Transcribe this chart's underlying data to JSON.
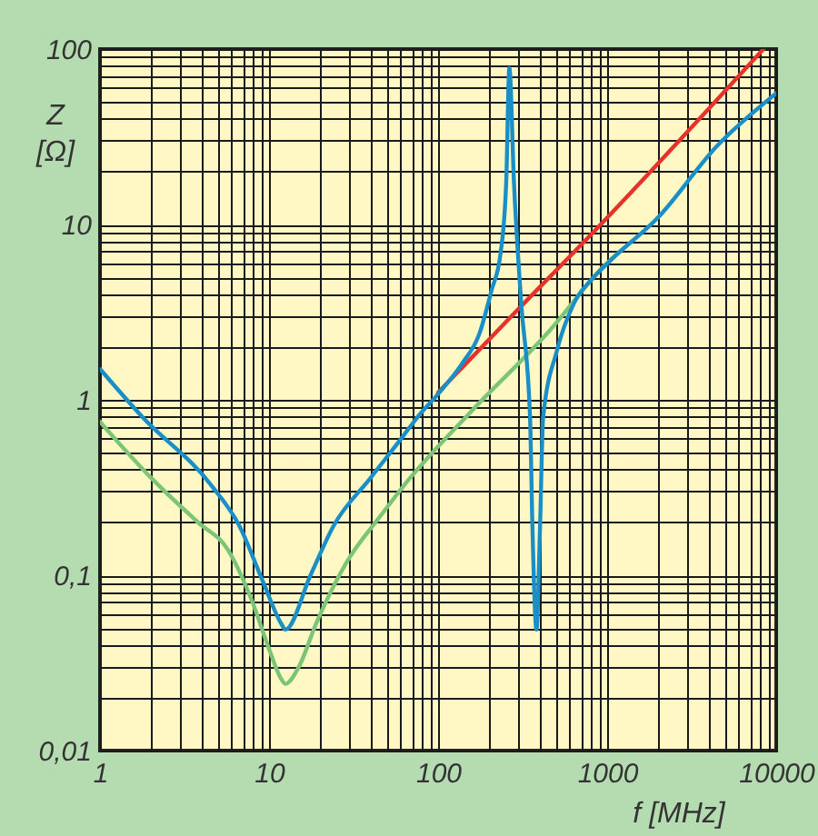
{
  "chart_data": {
    "type": "line",
    "xlabel": "f [MHz]",
    "ylabel": "Z [Ω]",
    "log": "xy",
    "grid": true,
    "xlim": [
      1,
      10000
    ],
    "ylim": [
      0.01,
      100
    ],
    "xticks": [
      1,
      {
        "value": 2,
        "label": null
      },
      {
        "value": 3,
        "label": null
      },
      {
        "value": 4,
        "label": null
      },
      {
        "value": 5,
        "label": null
      },
      {
        "value": 6,
        "label": null
      },
      {
        "value": 7,
        "label": null
      },
      {
        "value": 8,
        "label": null
      },
      {
        "value": 9,
        "label": null
      },
      10,
      {
        "value": 20,
        "label": null
      },
      {
        "value": 30,
        "label": null
      },
      {
        "value": 40,
        "label": null
      },
      {
        "value": 50,
        "label": null
      },
      {
        "value": 60,
        "label": null
      },
      {
        "value": 70,
        "label": null
      },
      {
        "value": 80,
        "label": null
      },
      {
        "value": 90,
        "label": null
      },
      100,
      {
        "value": 200,
        "label": null
      },
      {
        "value": 300,
        "label": null
      },
      {
        "value": 400,
        "label": null
      },
      {
        "value": 500,
        "label": null
      },
      {
        "value": 600,
        "label": null
      },
      {
        "value": 700,
        "label": null
      },
      {
        "value": 800,
        "label": null
      },
      {
        "value": 900,
        "label": null
      },
      1000,
      {
        "value": 2000,
        "label": null
      },
      {
        "value": 3000,
        "label": null
      },
      {
        "value": 4000,
        "label": null
      },
      {
        "value": 5000,
        "label": null
      },
      {
        "value": 6000,
        "label": null
      },
      {
        "value": 7000,
        "label": null
      },
      {
        "value": 8000,
        "label": null
      },
      {
        "value": 9000,
        "label": null
      },
      10000
    ],
    "yticks": [
      {
        "value": 0.01,
        "label": "0,01"
      },
      {
        "value": 0.02,
        "label": null
      },
      {
        "value": 0.03,
        "label": null
      },
      {
        "value": 0.04,
        "label": null
      },
      {
        "value": 0.05,
        "label": null
      },
      {
        "value": 0.06,
        "label": null
      },
      {
        "value": 0.07,
        "label": null
      },
      {
        "value": 0.08,
        "label": null
      },
      {
        "value": 0.09,
        "label": null
      },
      {
        "value": 0.1,
        "label": "0,1"
      },
      {
        "value": 0.2,
        "label": null
      },
      {
        "value": 0.3,
        "label": null
      },
      {
        "value": 0.4,
        "label": null
      },
      {
        "value": 0.5,
        "label": null
      },
      {
        "value": 0.6,
        "label": null
      },
      {
        "value": 0.7,
        "label": null
      },
      {
        "value": 0.8,
        "label": null
      },
      {
        "value": 0.9,
        "label": null
      },
      1,
      {
        "value": 2,
        "label": null
      },
      {
        "value": 3,
        "label": null
      },
      {
        "value": 4,
        "label": null
      },
      {
        "value": 5,
        "label": null
      },
      {
        "value": 6,
        "label": null
      },
      {
        "value": 7,
        "label": null
      },
      {
        "value": 8,
        "label": null
      },
      {
        "value": 9,
        "label": null
      },
      10,
      {
        "value": 20,
        "label": null
      },
      {
        "value": 30,
        "label": null
      },
      {
        "value": 40,
        "label": null
      },
      {
        "value": 50,
        "label": null
      },
      {
        "value": 60,
        "label": null
      },
      {
        "value": 70,
        "label": null
      },
      {
        "value": 80,
        "label": null
      },
      {
        "value": 90,
        "label": null
      },
      100
    ],
    "series": [
      {
        "color": "#7cc576",
        "x": [
          1,
          2,
          3.8,
          5.7,
          7.9,
          10,
          11.7,
          12.5,
          15,
          19,
          29,
          46,
          62,
          150,
          460,
          960,
          1250
        ],
        "values": [
          0.75,
          0.36,
          0.2,
          0.14,
          0.072,
          0.038,
          0.026,
          0.024,
          0.03,
          0.053,
          0.12,
          0.22,
          0.32,
          0.82,
          2.5,
          5.8,
          7.3
        ]
      },
      {
        "color": "#e63228",
        "x": [
          100,
          290,
          890,
          8400
        ],
        "values": [
          1.1,
          3.2,
          9.7,
          100
        ]
      },
      {
        "color": "#1a8fc7",
        "x": [
          1,
          1.8,
          4.5,
          6.7,
          9.2,
          11.8,
          12.5,
          17.6,
          24,
          40,
          62,
          75,
          100,
          138,
          176,
          207,
          234,
          253,
          264,
          281,
          310,
          350,
          361,
          382,
          401,
          418,
          504,
          641,
          817,
          1040,
          1990,
          4460,
          10000
        ],
        "values": [
          1.5,
          0.79,
          0.33,
          0.19,
          0.092,
          0.053,
          0.049,
          0.1,
          0.19,
          0.36,
          0.62,
          0.79,
          1.08,
          1.6,
          2.4,
          4.2,
          6.8,
          17.5,
          78,
          17.5,
          3.6,
          0.79,
          0.2,
          0.049,
          0.19,
          0.79,
          1.9,
          3.6,
          4.9,
          6.2,
          10.9,
          28,
          56
        ]
      }
    ]
  }
}
